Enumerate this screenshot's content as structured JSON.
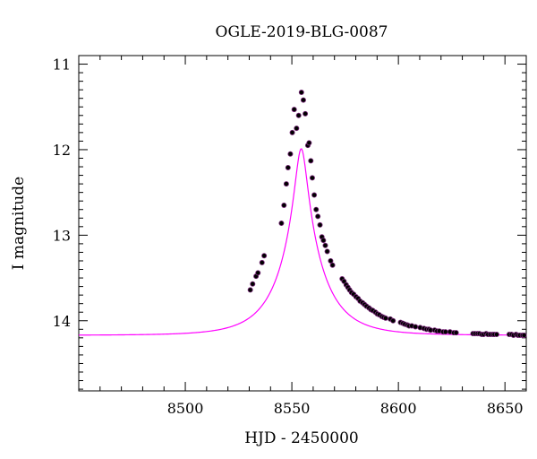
{
  "chart_data": {
    "type": "scatter",
    "title": "OGLE-2019-BLG-0087",
    "xlabel": "HJD - 2450000",
    "ylabel": "I magnitude",
    "xlim": [
      8450,
      8660
    ],
    "ylim": [
      14.82,
      10.9
    ],
    "y_inverted": true,
    "x_ticks": [
      "8500",
      "8550",
      "8600",
      "8650"
    ],
    "y_ticks": [
      "11",
      "12",
      "13",
      "14"
    ],
    "grid": false,
    "legend": "none",
    "colors": {
      "model": "#ff00ff",
      "points": "#000000",
      "point_edge": "#7a2a7a"
    },
    "model": {
      "t0": 8554.4,
      "u0": 0.135,
      "tE": 19.5,
      "baseline_mag": 14.17
    },
    "series": [
      {
        "values": [
          [
            8530.5,
            13.64
          ],
          [
            8531.6,
            13.57
          ],
          [
            8533.2,
            13.48
          ],
          [
            8534.1,
            13.44
          ],
          [
            8536.0,
            13.32
          ],
          [
            8537.0,
            13.24
          ],
          [
            8545.1,
            12.86
          ],
          [
            8546.3,
            12.65
          ],
          [
            8547.4,
            12.4
          ],
          [
            8548.2,
            12.21
          ],
          [
            8549.3,
            12.05
          ],
          [
            8550.2,
            11.8
          ],
          [
            8551.1,
            11.53
          ],
          [
            8552.2,
            11.75
          ],
          [
            8553.2,
            11.6
          ],
          [
            8554.5,
            11.33
          ],
          [
            8555.4,
            11.42
          ],
          [
            8556.3,
            11.58
          ],
          [
            8557.5,
            11.95
          ],
          [
            8558.1,
            11.92
          ],
          [
            8558.9,
            12.13
          ],
          [
            8559.6,
            12.33
          ],
          [
            8560.5,
            12.53
          ],
          [
            8561.4,
            12.7
          ],
          [
            8562.2,
            12.78
          ],
          [
            8563.2,
            12.88
          ],
          [
            8564.1,
            13.02
          ],
          [
            8564.8,
            13.06
          ],
          [
            8565.7,
            13.12
          ],
          [
            8566.6,
            13.19
          ],
          [
            8568.2,
            13.3
          ],
          [
            8569.1,
            13.35
          ],
          [
            8573.6,
            13.51
          ],
          [
            8574.5,
            13.54
          ],
          [
            8575.5,
            13.58
          ],
          [
            8576.3,
            13.61
          ],
          [
            8577.1,
            13.64
          ],
          [
            8578.0,
            13.67
          ],
          [
            8579.0,
            13.69
          ],
          [
            8580.1,
            13.72
          ],
          [
            8581.1,
            13.74
          ],
          [
            8582.0,
            13.77
          ],
          [
            8583.2,
            13.79
          ],
          [
            8584.1,
            13.81
          ],
          [
            8585.0,
            13.83
          ],
          [
            8586.2,
            13.85
          ],
          [
            8587.1,
            13.87
          ],
          [
            8588.0,
            13.88
          ],
          [
            8589.2,
            13.9
          ],
          [
            8590.1,
            13.92
          ],
          [
            8591.0,
            13.93
          ],
          [
            8592.2,
            13.95
          ],
          [
            8593.1,
            13.96
          ],
          [
            8594.0,
            13.97
          ],
          [
            8596.2,
            13.98
          ],
          [
            8597.5,
            14.0
          ],
          [
            8601.0,
            14.02
          ],
          [
            8602.1,
            14.03
          ],
          [
            8603.0,
            14.04
          ],
          [
            8604.2,
            14.05
          ],
          [
            8605.0,
            14.06
          ],
          [
            8606.3,
            14.06
          ],
          [
            8608.0,
            14.07
          ],
          [
            8610.2,
            14.08
          ],
          [
            8612.0,
            14.09
          ],
          [
            8613.2,
            14.1
          ],
          [
            8614.3,
            14.1
          ],
          [
            8615.1,
            14.11
          ],
          [
            8617.0,
            14.11
          ],
          [
            8618.1,
            14.12
          ],
          [
            8619.2,
            14.12
          ],
          [
            8621.0,
            14.13
          ],
          [
            8622.1,
            14.13
          ],
          [
            8624.2,
            14.13
          ],
          [
            8626.0,
            14.14
          ],
          [
            8627.1,
            14.14
          ],
          [
            8635.0,
            14.15
          ],
          [
            8636.0,
            14.15
          ],
          [
            8637.1,
            14.15
          ],
          [
            8638.0,
            14.15
          ],
          [
            8639.1,
            14.16
          ],
          [
            8640.0,
            14.16
          ],
          [
            8641.2,
            14.15
          ],
          [
            8642.0,
            14.16
          ],
          [
            8643.1,
            14.16
          ],
          [
            8644.2,
            14.16
          ],
          [
            8645.0,
            14.16
          ],
          [
            8646.1,
            14.16
          ],
          [
            8652.0,
            14.16
          ],
          [
            8653.1,
            14.16
          ],
          [
            8654.0,
            14.17
          ],
          [
            8655.2,
            14.16
          ],
          [
            8656.1,
            14.17
          ],
          [
            8657.0,
            14.17
          ],
          [
            8658.2,
            14.17
          ],
          [
            8659.0,
            14.17
          ]
        ]
      }
    ]
  }
}
